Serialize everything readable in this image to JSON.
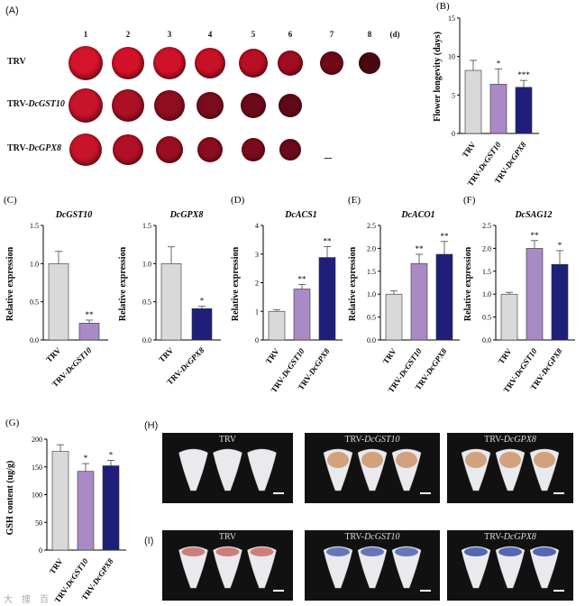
{
  "panelA": {
    "label": "(A)",
    "unit": "(d)",
    "days": [
      "1",
      "2",
      "3",
      "4",
      "5",
      "6",
      "7",
      "8"
    ],
    "rows": [
      {
        "name": "TRV",
        "prefix": "",
        "gene": "",
        "flowers": 8
      },
      {
        "name": "TRV-DcGST10",
        "prefix": "TRV-",
        "gene": "DcGST10",
        "flowers": 6
      },
      {
        "name": "TRV-DcGPX8",
        "prefix": "TRV-",
        "gene": "DcGPX8",
        "flowers": 6
      }
    ]
  },
  "panelH": {
    "label": "(H)",
    "photos": [
      {
        "prefix": "TRV",
        "gene": ""
      },
      {
        "prefix": "TRV-",
        "gene": "DcGST10"
      },
      {
        "prefix": "TRV-",
        "gene": "DcGPX8"
      }
    ]
  },
  "panelI": {
    "label": "(I)",
    "photos": [
      {
        "prefix": "TRV",
        "gene": ""
      },
      {
        "prefix": "TRV-",
        "gene": "DcGST10"
      },
      {
        "prefix": "TRV-",
        "gene": "DcGPX8"
      }
    ]
  },
  "watermark": "大　搜　百",
  "colors": {
    "trv": "#d9d9d9",
    "gst": "#a98ac4",
    "gpx": "#1f1f7a"
  },
  "chart_data": [
    {
      "id": "B",
      "label": "(B)",
      "type": "bar",
      "title": "",
      "ylabel": "Flower longevity (days)",
      "ylim": [
        0,
        15
      ],
      "yticks": [
        0,
        5,
        10,
        15
      ],
      "categories": [
        "TRV",
        "TRV-DcGST10",
        "TRV-DcGPX8"
      ],
      "values": [
        8.2,
        6.4,
        6.0
      ],
      "errors": [
        1.3,
        2.0,
        0.9
      ],
      "sig": [
        "",
        "*",
        "***"
      ]
    },
    {
      "id": "C1",
      "label": "(C)",
      "type": "bar",
      "title": "DcGST10",
      "ylabel": "Relative expression",
      "ylim": [
        0,
        1.5
      ],
      "yticks": [
        "0.0",
        "0.5",
        "1.0",
        "1.5"
      ],
      "categories": [
        "TRV",
        "TRV-DcGST10"
      ],
      "values": [
        1.0,
        0.22
      ],
      "errors": [
        0.16,
        0.04
      ],
      "sig": [
        "",
        "**"
      ]
    },
    {
      "id": "C2",
      "label": "",
      "type": "bar",
      "title": "DcGPX8",
      "ylabel": "Relative expression",
      "ylim": [
        0,
        1.5
      ],
      "yticks": [
        "0.0",
        "0.5",
        "1.0",
        "1.5"
      ],
      "categories": [
        "TRV",
        "TRV-DcGPX8"
      ],
      "values": [
        1.0,
        0.41
      ],
      "errors": [
        0.22,
        0.03
      ],
      "sig": [
        "",
        "*"
      ]
    },
    {
      "id": "D",
      "label": "(D)",
      "type": "bar",
      "title": "DcACS1",
      "ylabel": "Relative expression",
      "ylim": [
        0,
        4
      ],
      "yticks": [
        "0",
        "1",
        "2",
        "3",
        "4"
      ],
      "categories": [
        "TRV",
        "TRV-DcGST10",
        "TRV-DcGPX8"
      ],
      "values": [
        1.0,
        1.78,
        2.88
      ],
      "errors": [
        0.05,
        0.16,
        0.38
      ],
      "sig": [
        "",
        "**",
        "**"
      ]
    },
    {
      "id": "E",
      "label": "(E)",
      "type": "bar",
      "title": "DcACO1",
      "ylabel": "Relative expression",
      "ylim": [
        0,
        2.5
      ],
      "yticks": [
        "0.0",
        "0.5",
        "1.0",
        "1.5",
        "2.0",
        "2.5"
      ],
      "categories": [
        "TRV",
        "TRV-DcGST10",
        "TRV-DcGPX8"
      ],
      "values": [
        1.0,
        1.67,
        1.87
      ],
      "errors": [
        0.07,
        0.2,
        0.28
      ],
      "sig": [
        "",
        "**",
        "**"
      ]
    },
    {
      "id": "F",
      "label": "(F)",
      "type": "bar",
      "title": "DcSAG12",
      "ylabel": "Relative expression",
      "ylim": [
        0,
        2.5
      ],
      "yticks": [
        "0.0",
        "0.5",
        "1.0",
        "1.5",
        "2.0",
        "2.5"
      ],
      "categories": [
        "TRV",
        "TRV-DcGST10",
        "TRV-DcGPX8"
      ],
      "values": [
        1.0,
        2.0,
        1.65
      ],
      "errors": [
        0.04,
        0.17,
        0.3
      ],
      "sig": [
        "",
        "**",
        "*"
      ]
    },
    {
      "id": "G",
      "label": "(G)",
      "type": "bar",
      "title": "",
      "ylabel": "GSH content (ug/g)",
      "ylim": [
        0,
        200
      ],
      "yticks": [
        "0",
        "50",
        "100",
        "150",
        "200"
      ],
      "categories": [
        "TRV",
        "TRV-DcGST10",
        "TRV-DcGPX8"
      ],
      "values": [
        178,
        142,
        152
      ],
      "errors": [
        12,
        14,
        10
      ],
      "sig": [
        "",
        "*",
        "*"
      ]
    }
  ]
}
